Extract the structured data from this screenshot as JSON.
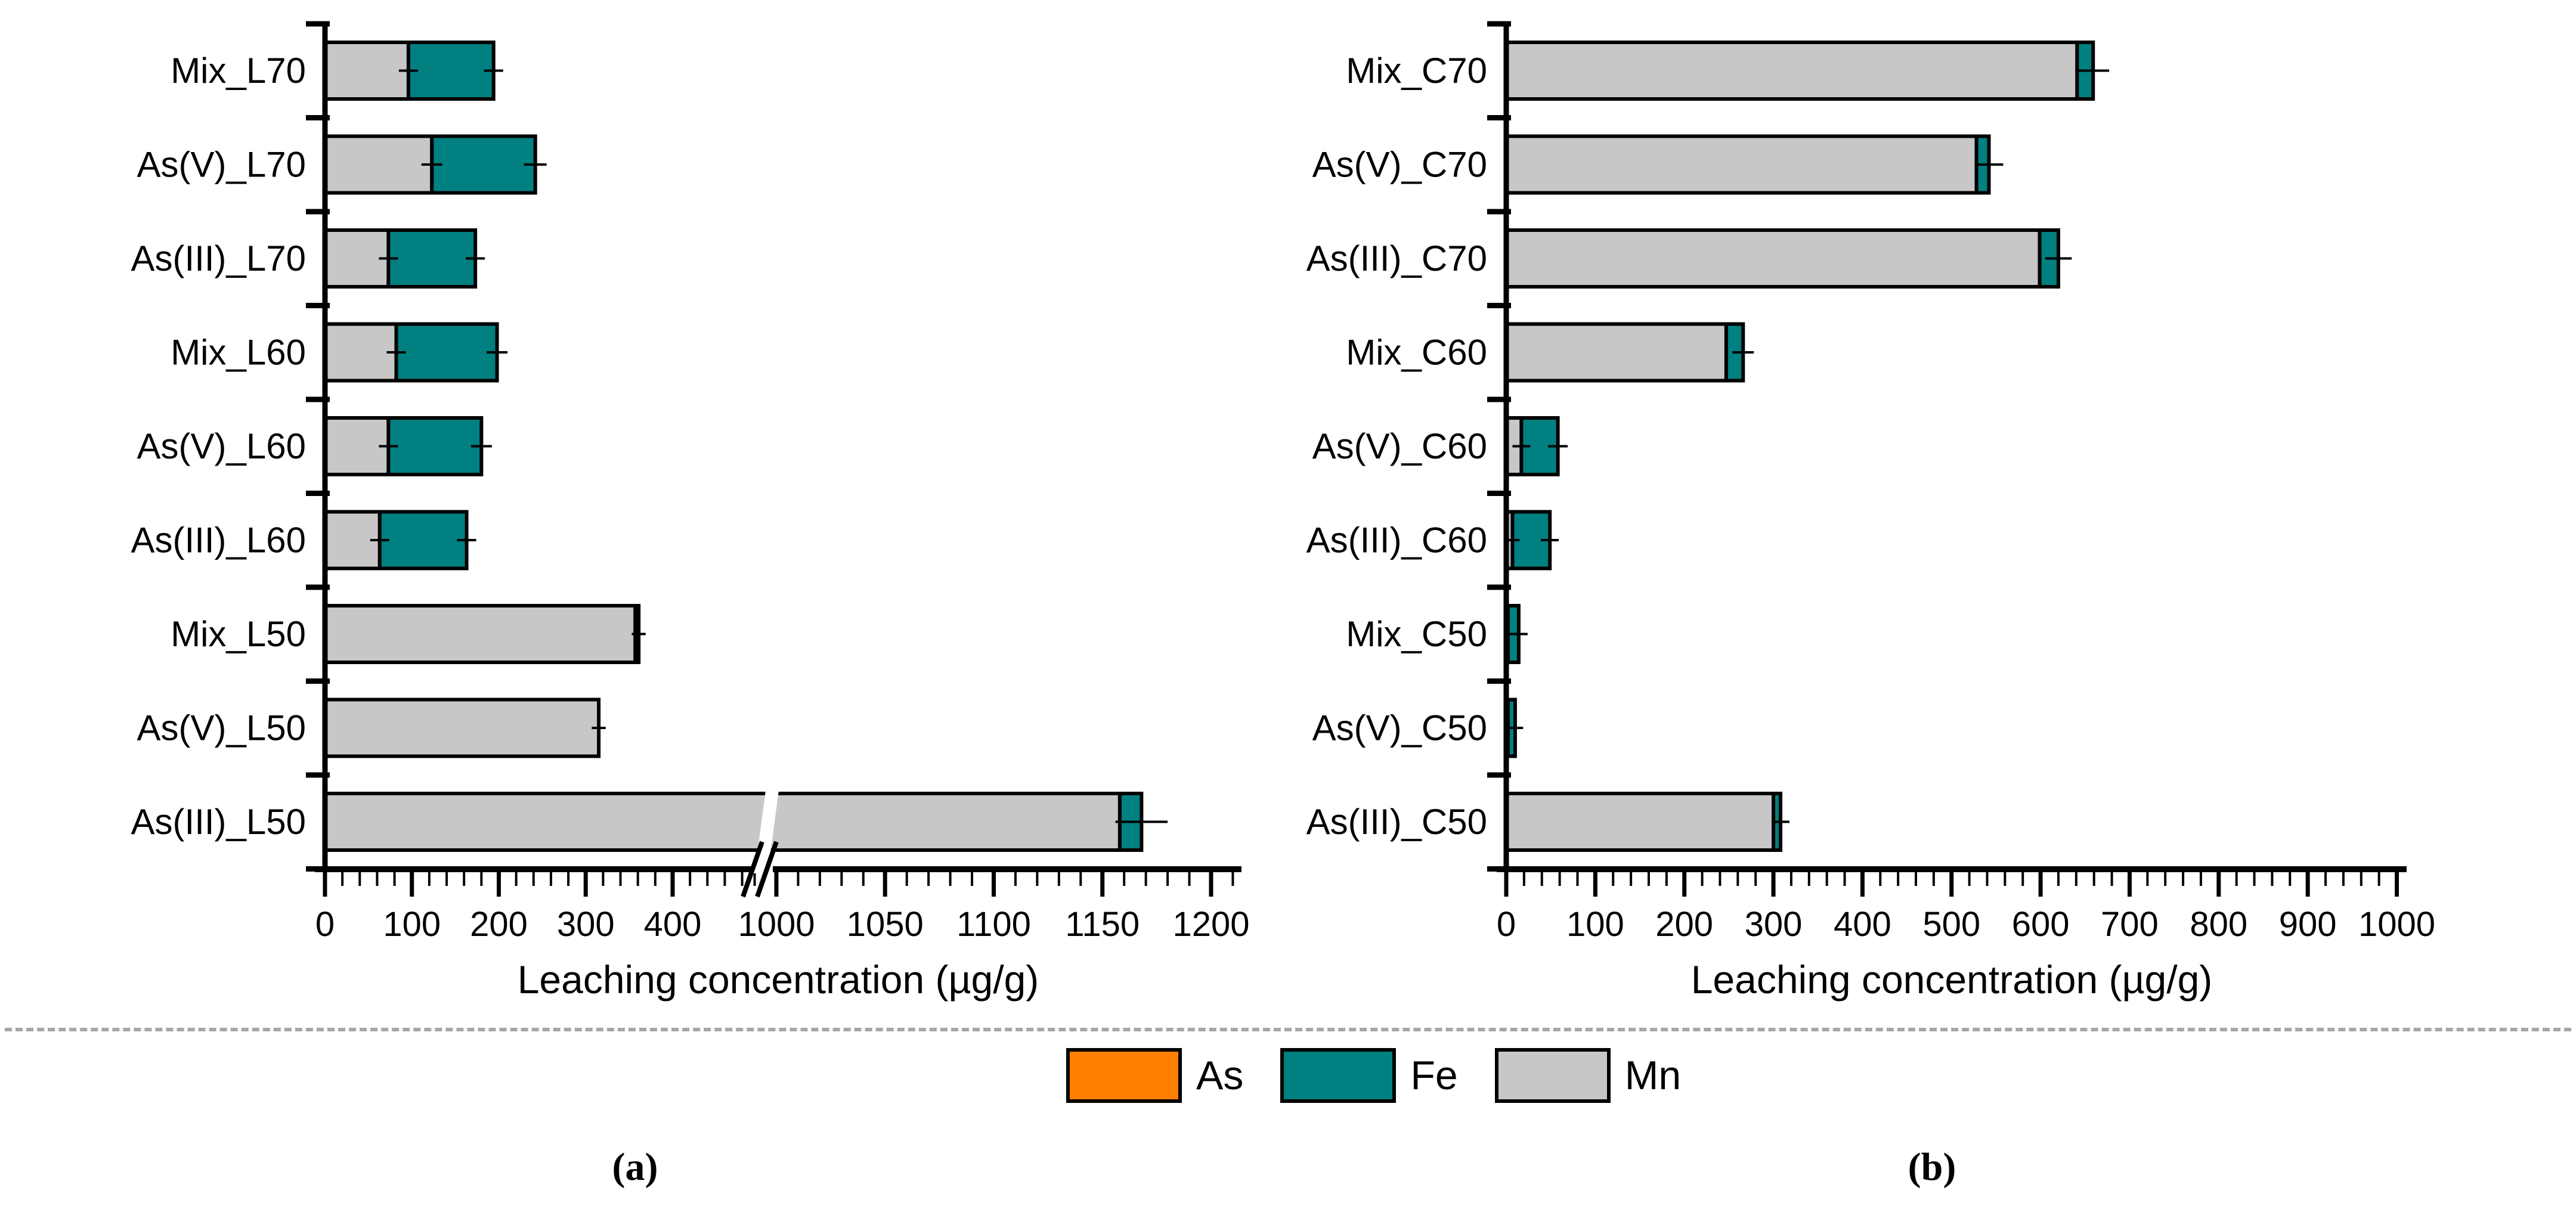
{
  "figure": {
    "captions": {
      "a": "(a)",
      "b": "(b)"
    },
    "legend": {
      "items": [
        {
          "label": "As",
          "color": "#FF8000"
        },
        {
          "label": "Fe",
          "color": "#008080"
        },
        {
          "label": "Mn",
          "color": "#C7C7C7"
        }
      ]
    }
  },
  "chart_data": [
    {
      "id": "a",
      "type": "bar",
      "orientation": "horizontal",
      "stacked": true,
      "title": "",
      "xlabel": "Leaching concentration (µg/g)",
      "grid": false,
      "legend_position": "below-figure",
      "categories": [
        "Mix_L70",
        "As(V)_L70",
        "As(III)_L70",
        "Mix_L60",
        "As(V)_L60",
        "As(III)_L60",
        "Mix_L50",
        "As(V)_L50",
        "As(III)_L50"
      ],
      "stack_order": [
        "Mn",
        "Fe",
        "As"
      ],
      "series": [
        {
          "name": "Mn",
          "color": "#C7C7C7",
          "values": [
            96,
            123,
            73,
            82,
            73,
            63,
            357,
            315,
            1158
          ]
        },
        {
          "name": "Fe",
          "color": "#008080",
          "values": [
            98,
            119,
            100,
            116,
            107,
            100,
            4,
            0,
            10
          ]
        },
        {
          "name": "As",
          "color": "#FF8000",
          "values": [
            0,
            0,
            0,
            0,
            0,
            0,
            0,
            0,
            0
          ]
        }
      ],
      "error_at_mn_boundary": [
        11,
        12,
        11,
        11,
        11,
        11,
        0,
        0,
        0
      ],
      "error_at_stack_end": [
        11,
        13,
        11,
        12,
        12,
        11,
        8,
        8,
        12
      ],
      "axis_break": {
        "from": 480,
        "to": 990
      },
      "xlim_segments": [
        [
          0,
          480
        ],
        [
          990,
          1210
        ]
      ],
      "x_major_ticks": [
        0,
        100,
        200,
        300,
        400,
        1000,
        1050,
        1100,
        1150,
        1200
      ],
      "x_minor_step_before_break": 20,
      "x_minor_step_after_break": 10,
      "x_max": 1210
    },
    {
      "id": "b",
      "type": "bar",
      "orientation": "horizontal",
      "stacked": true,
      "title": "",
      "xlabel": "Leaching concentration (µg/g)",
      "grid": false,
      "legend_position": "below-figure",
      "categories": [
        "Mix_C70",
        "As(V)_C70",
        "As(III)_C70",
        "Mix_C60",
        "As(V)_C60",
        "As(III)_C60",
        "Mix_C50",
        "As(V)_C50",
        "As(III)_C50"
      ],
      "stack_order": [
        "Mn",
        "Fe",
        "As"
      ],
      "series": [
        {
          "name": "Mn",
          "color": "#C7C7C7",
          "values": [
            641,
            528,
            599,
            247,
            17,
            7,
            2,
            2,
            300
          ]
        },
        {
          "name": "Fe",
          "color": "#008080",
          "values": [
            18,
            14,
            21,
            19,
            41,
            42,
            12,
            8,
            8
          ]
        },
        {
          "name": "As",
          "color": "#FF8000",
          "values": [
            0,
            0,
            0,
            0,
            0,
            0,
            0,
            0,
            0
          ]
        }
      ],
      "error_at_mn_boundary": [
        0,
        0,
        0,
        0,
        10,
        8,
        0,
        0,
        0
      ],
      "error_at_stack_end": [
        18,
        16,
        15,
        12,
        11,
        10,
        10,
        9,
        10
      ],
      "xlim": [
        0,
        1050
      ],
      "x_major_ticks": [
        0,
        100,
        200,
        300,
        400,
        500,
        600,
        700,
        800,
        900,
        1000
      ],
      "x_minor_step": 20,
      "x_max": 1000
    }
  ]
}
